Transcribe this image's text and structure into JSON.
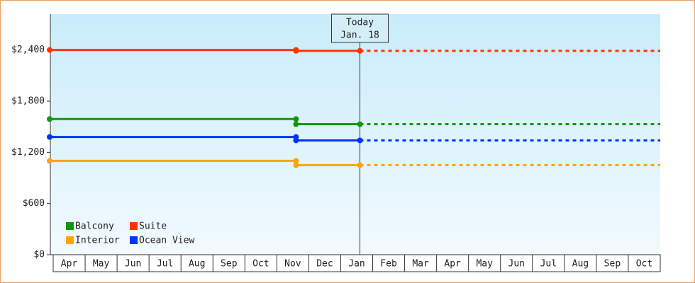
{
  "chart_data": {
    "type": "line",
    "categories": [
      "Apr",
      "May",
      "Jun",
      "Jul",
      "Aug",
      "Sep",
      "Oct",
      "Nov",
      "Dec",
      "Jan",
      "Feb",
      "Mar",
      "Apr",
      "May",
      "Jun",
      "Jul",
      "Aug",
      "Sep",
      "Oct"
    ],
    "x": [
      "Apr",
      "Nov",
      "Nov",
      "Jan"
    ],
    "series": [
      {
        "name": "Balcony",
        "color": "#149614",
        "values": [
          1590,
          1590,
          1530,
          1530
        ]
      },
      {
        "name": "Suite",
        "color": "#ff3300",
        "values": [
          2400,
          2400,
          2390,
          2390
        ]
      },
      {
        "name": "Interior",
        "color": "#ffa500",
        "values": [
          1100,
          1100,
          1050,
          1050
        ]
      },
      {
        "name": "Ocean View",
        "color": "#0033ff",
        "values": [
          1380,
          1380,
          1340,
          1340
        ]
      }
    ],
    "annotation": {
      "title": "Today",
      "date": "Jan. 18",
      "x": "Jan"
    },
    "ylim": [
      0,
      2820
    ],
    "yticks": [
      {
        "value": 0,
        "label": "$0"
      },
      {
        "value": 600,
        "label": "$600"
      },
      {
        "value": 1200,
        "label": "$1,200"
      },
      {
        "value": 1800,
        "label": "$1,800"
      },
      {
        "value": 2400,
        "label": "$2,400"
      }
    ]
  }
}
